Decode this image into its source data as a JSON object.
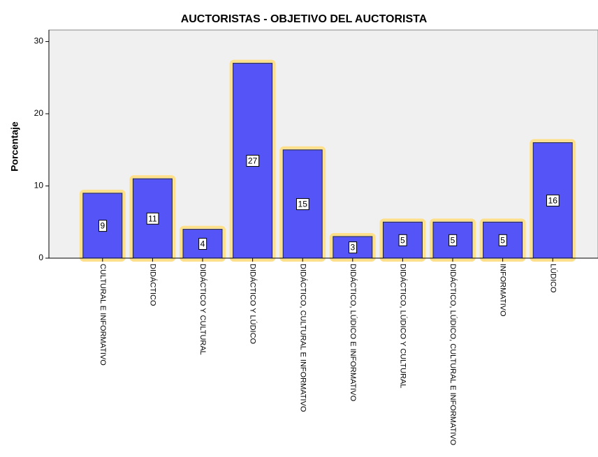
{
  "chart_data": {
    "type": "bar",
    "title": "AUCTORISTAS - OBJETIVO DEL AUCTORISTA",
    "y_label": "Porcentaje",
    "categories": [
      "CULTURAL E INFORMATIVO",
      "DIDÁCTICO",
      "DIDÁCTICO Y CULTURAL",
      "DIDÁCTICO Y LÚDICO",
      "DIDÁCTICO, CULTURAL E INFORMATIVO",
      "DIDÁCTICO, LÚDICO E INFORMATIVO",
      "DIDÁCTICO, LÚDICO Y CULTURAL",
      "DIDÁCTICO, LÚDICO, CULTURAL E INFORMATIVO",
      "INFORMATIVO",
      "LÚDICO"
    ],
    "values": [
      9,
      11,
      4,
      27,
      15,
      3,
      5,
      5,
      5,
      16
    ],
    "color": "#5555f7",
    "ylim": [
      0,
      31.6
    ],
    "yticks": [
      0,
      10,
      20,
      30
    ]
  }
}
